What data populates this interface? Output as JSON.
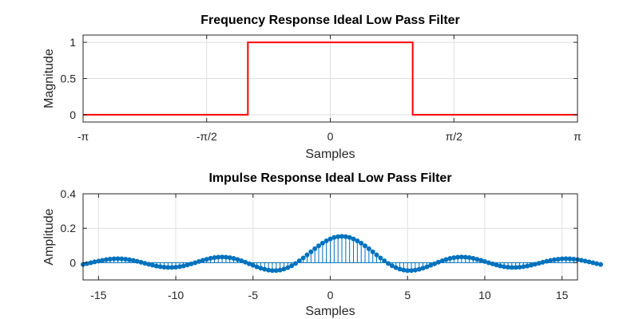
{
  "chart_data": [
    {
      "type": "line",
      "title": "Frequency Response Ideal Low Pass Filter",
      "xlabel": "Samples",
      "ylabel": "Magnitude",
      "xlim": [
        -3.14159,
        3.14159
      ],
      "ylim": [
        -0.1,
        1.1
      ],
      "grid": true,
      "xticks": [
        {
          "value": -3.14159,
          "label": "-π"
        },
        {
          "value": -1.5708,
          "label": "-π/2"
        },
        {
          "value": 0,
          "label": "0"
        },
        {
          "value": 1.5708,
          "label": "π/2"
        },
        {
          "value": 3.14159,
          "label": "π"
        }
      ],
      "yticks": [
        {
          "value": 0,
          "label": "0"
        },
        {
          "value": 0.5,
          "label": "0.5"
        },
        {
          "value": 1,
          "label": "1"
        }
      ],
      "series": [
        {
          "color": "#ff0000",
          "x": [
            -3.14159,
            -1.0472,
            -1.0472,
            1.0472,
            1.0472,
            3.14159
          ],
          "y": [
            0,
            0,
            1,
            1,
            0,
            0
          ]
        }
      ]
    },
    {
      "type": "stem",
      "title": "Impulse Response Ideal Low Pass Filter",
      "xlabel": "Samples",
      "ylabel": "Amplitude",
      "xlim": [
        -16,
        16
      ],
      "ylim": [
        -0.1,
        0.4
      ],
      "grid": true,
      "xticks": [
        {
          "value": -15,
          "label": "-15"
        },
        {
          "value": -10,
          "label": "-10"
        },
        {
          "value": -5,
          "label": "-5"
        },
        {
          "value": 0,
          "label": "0"
        },
        {
          "value": 5,
          "label": "5"
        },
        {
          "value": 10,
          "label": "10"
        },
        {
          "value": 15,
          "label": "15"
        }
      ],
      "yticks": [
        {
          "value": 0,
          "label": "0"
        },
        {
          "value": 0.2,
          "label": "0.2"
        },
        {
          "value": 0.4,
          "label": "0.4"
        }
      ],
      "series": [
        {
          "color": "#0072bd",
          "x_start": -16,
          "x_step": 0.25,
          "y": [
            -0.0103,
            -0.0057,
            -0.0007,
            0.0045,
            0.0094,
            0.014,
            0.0178,
            0.0207,
            0.0225,
            0.0231,
            0.0225,
            0.0205,
            0.0174,
            0.0132,
            0.0082,
            0.0026,
            -0.0033,
            -0.0091,
            -0.0145,
            -0.0193,
            -0.0232,
            -0.026,
            -0.0274,
            -0.0274,
            -0.026,
            -0.0231,
            -0.0188,
            -0.0134,
            -0.007,
            -0.0002,
            0.0069,
            0.0138,
            0.02,
            0.0253,
            0.0294,
            0.032,
            0.0329,
            0.032,
            0.0293,
            0.0248,
            0.0187,
            0.0113,
            0.0029,
            -0.0061,
            -0.0152,
            -0.024,
            -0.0319,
            -0.0383,
            -0.043,
            -0.0454,
            -0.0454,
            -0.0426,
            -0.037,
            -0.0286,
            -0.0177,
            -0.0044,
            0.0109,
            0.0276,
            0.0453,
            0.0633,
            0.081,
            0.0979,
            0.1134,
            0.1269,
            0.138,
            0.1463,
            0.1514,
            0.1531,
            0.1514,
            0.1463,
            0.138,
            0.1269,
            0.1134,
            0.0979,
            0.081,
            0.0633,
            0.0453,
            0.0276,
            0.0109,
            -0.0044,
            -0.0177,
            -0.0286,
            -0.037,
            -0.0426,
            -0.0454,
            -0.0454,
            -0.043,
            -0.0383,
            -0.0319,
            -0.024,
            -0.0152,
            -0.0061,
            0.0029,
            0.0113,
            0.0187,
            0.0248,
            0.0293,
            0.032,
            0.0329,
            0.032,
            0.0294,
            0.0253,
            0.02,
            0.0138,
            0.0069,
            -0.0002,
            -0.007,
            -0.0134,
            -0.0188,
            -0.0231,
            -0.026,
            -0.0274,
            -0.0274,
            -0.026,
            -0.0232,
            -0.0193,
            -0.0145,
            -0.0091,
            -0.0033,
            0.0026,
            0.0082,
            0.0132,
            0.0174,
            0.0205,
            0.0225,
            0.0231,
            0.0225,
            0.0207,
            0.0178,
            0.014,
            0.0094,
            0.0045,
            -0.0007,
            -0.0057,
            -0.0103
          ]
        }
      ]
    }
  ]
}
